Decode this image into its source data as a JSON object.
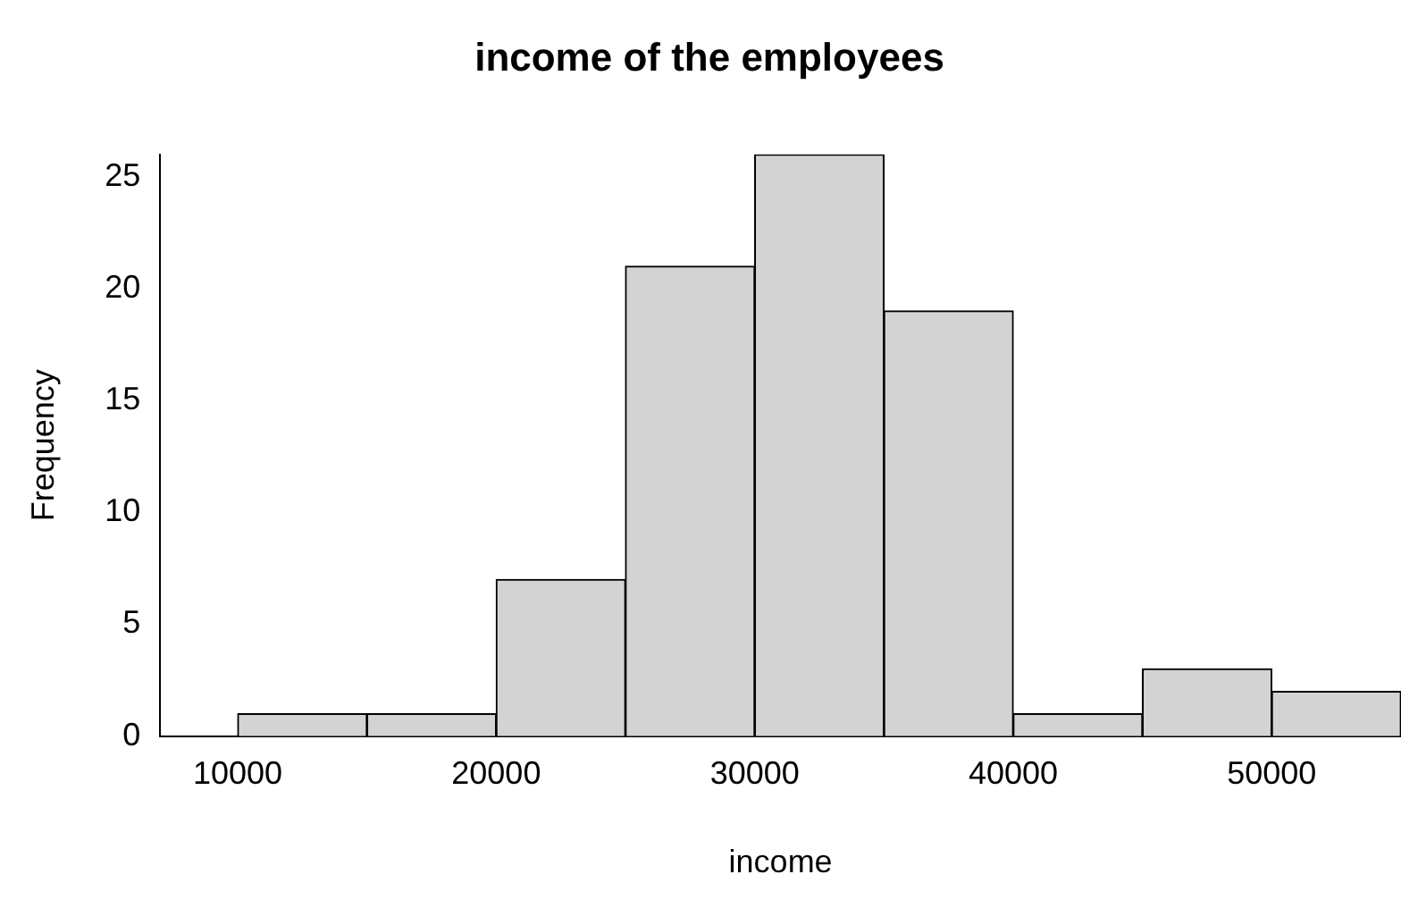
{
  "chart_data": {
    "type": "histogram",
    "title": "income of the employees",
    "xlabel": "income",
    "ylabel": "Frequency",
    "bins": [
      10000,
      15000,
      20000,
      25000,
      30000,
      35000,
      40000,
      45000,
      50000,
      55000
    ],
    "values": [
      1,
      1,
      7,
      21,
      26,
      19,
      1,
      3,
      2
    ],
    "color": "#d3d3d3",
    "xlim": [
      7000,
      55000
    ],
    "xticks": [
      10000,
      20000,
      30000,
      40000,
      50000
    ],
    "ylim": [
      0,
      26
    ],
    "yticks": [
      0,
      5,
      10,
      15,
      20,
      25
    ],
    "grid": false,
    "legend": false
  }
}
